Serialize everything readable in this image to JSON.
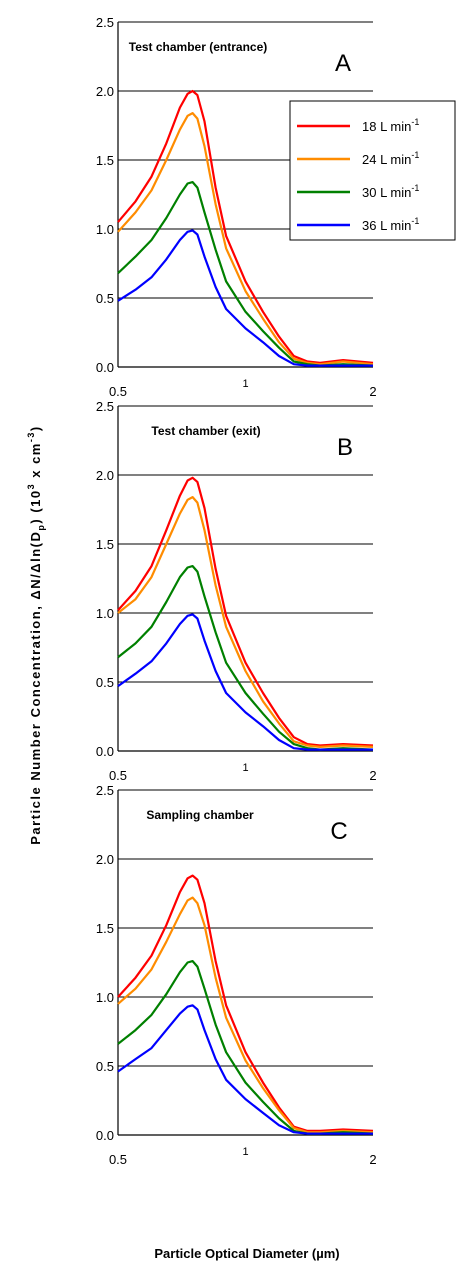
{
  "xlabel": "Particle Optical Diameter (µm)",
  "ylabel": {
    "main": "Particle Number Concentration, ΔN/Δln(D",
    "sub": "p",
    "mid": ")  (10",
    "sup1": "3",
    "mid2": " x cm",
    "sup2": "-3",
    "end": ")"
  },
  "legend": [
    {
      "text": "18 L min",
      "sup": "-1"
    },
    {
      "text": "24 L min",
      "sup": "-1"
    },
    {
      "text": "30 L min",
      "sup": "-1"
    },
    {
      "text": "36 L min",
      "sup": "-1"
    }
  ],
  "x_ticks": [
    {
      "value": 0.5,
      "label": "0.5"
    },
    {
      "value": 1,
      "label": "1"
    },
    {
      "value": 2,
      "label": "2"
    }
  ],
  "y_ticks": [
    {
      "value": 0,
      "label": "0.0"
    },
    {
      "value": 0.5,
      "label": "0.5"
    },
    {
      "value": 1.0,
      "label": "1.0"
    },
    {
      "value": 1.5,
      "label": "1.5"
    },
    {
      "value": 2.0,
      "label": "2.0"
    },
    {
      "value": 2.5,
      "label": "2.5"
    }
  ],
  "chart_data": [
    {
      "type": "line",
      "title": "Test chamber (entrance)",
      "letter": "A",
      "xscale": "log",
      "xlim": [
        0.5,
        2
      ],
      "ylim": [
        0,
        2.5
      ],
      "grid": "horizontal",
      "legend_position": "top-right",
      "x": [
        0.5,
        0.55,
        0.6,
        0.65,
        0.7,
        0.73,
        0.75,
        0.77,
        0.8,
        0.85,
        0.9,
        1.0,
        1.1,
        1.2,
        1.3,
        1.4,
        1.5,
        1.7,
        2.0
      ],
      "series": [
        {
          "name": "18 L min-1",
          "color": "#ff0000",
          "values": [
            1.05,
            1.2,
            1.38,
            1.62,
            1.88,
            1.98,
            2.0,
            1.97,
            1.78,
            1.3,
            0.95,
            0.62,
            0.4,
            0.22,
            0.08,
            0.04,
            0.03,
            0.05,
            0.03
          ]
        },
        {
          "name": "24 L min-1",
          "color": "#ff8c00",
          "values": [
            0.98,
            1.12,
            1.28,
            1.5,
            1.72,
            1.82,
            1.84,
            1.8,
            1.6,
            1.18,
            0.86,
            0.55,
            0.35,
            0.18,
            0.06,
            0.03,
            0.02,
            0.04,
            0.02
          ]
        },
        {
          "name": "30 L min-1",
          "color": "#008000",
          "values": [
            0.68,
            0.8,
            0.92,
            1.08,
            1.25,
            1.33,
            1.34,
            1.3,
            1.12,
            0.85,
            0.62,
            0.4,
            0.26,
            0.14,
            0.04,
            0.02,
            0.01,
            0.02,
            0.01
          ]
        },
        {
          "name": "36 L min-1",
          "color": "#0000ff",
          "values": [
            0.48,
            0.56,
            0.65,
            0.78,
            0.92,
            0.98,
            0.99,
            0.96,
            0.8,
            0.58,
            0.42,
            0.28,
            0.18,
            0.08,
            0.02,
            0.01,
            0.01,
            0.01,
            0.01
          ]
        }
      ]
    },
    {
      "type": "line",
      "title": "Test chamber (exit)",
      "letter": "B",
      "xscale": "log",
      "xlim": [
        0.5,
        2
      ],
      "ylim": [
        0,
        2.5
      ],
      "grid": "horizontal",
      "x": [
        0.5,
        0.55,
        0.6,
        0.65,
        0.7,
        0.73,
        0.75,
        0.77,
        0.8,
        0.85,
        0.9,
        1.0,
        1.1,
        1.2,
        1.3,
        1.4,
        1.5,
        1.7,
        2.0
      ],
      "series": [
        {
          "name": "18 L min-1",
          "color": "#ff0000",
          "values": [
            1.02,
            1.16,
            1.34,
            1.6,
            1.85,
            1.96,
            1.98,
            1.95,
            1.76,
            1.32,
            0.98,
            0.64,
            0.42,
            0.24,
            0.1,
            0.05,
            0.04,
            0.05,
            0.04
          ]
        },
        {
          "name": "24 L min-1",
          "color": "#ff8c00",
          "values": [
            1.0,
            1.1,
            1.26,
            1.5,
            1.72,
            1.82,
            1.84,
            1.8,
            1.6,
            1.2,
            0.9,
            0.58,
            0.36,
            0.2,
            0.07,
            0.04,
            0.03,
            0.04,
            0.03
          ]
        },
        {
          "name": "30 L min-1",
          "color": "#008000",
          "values": [
            0.68,
            0.78,
            0.9,
            1.08,
            1.26,
            1.33,
            1.34,
            1.3,
            1.12,
            0.86,
            0.64,
            0.42,
            0.27,
            0.14,
            0.05,
            0.02,
            0.01,
            0.02,
            0.01
          ]
        },
        {
          "name": "36 L min-1",
          "color": "#0000ff",
          "values": [
            0.47,
            0.56,
            0.65,
            0.78,
            0.92,
            0.98,
            0.99,
            0.96,
            0.8,
            0.58,
            0.42,
            0.28,
            0.18,
            0.08,
            0.02,
            0.01,
            0.01,
            0.01,
            0.01
          ]
        }
      ]
    },
    {
      "type": "line",
      "title": "Sampling chamber",
      "letter": "C",
      "xscale": "log",
      "xlim": [
        0.5,
        2
      ],
      "ylim": [
        0,
        2.5
      ],
      "grid": "horizontal",
      "x": [
        0.5,
        0.55,
        0.6,
        0.65,
        0.7,
        0.73,
        0.75,
        0.77,
        0.8,
        0.85,
        0.9,
        1.0,
        1.1,
        1.2,
        1.3,
        1.4,
        1.5,
        1.7,
        2.0
      ],
      "series": [
        {
          "name": "18 L min-1",
          "color": "#ff0000",
          "values": [
            1.0,
            1.14,
            1.3,
            1.52,
            1.76,
            1.86,
            1.88,
            1.85,
            1.68,
            1.26,
            0.94,
            0.6,
            0.38,
            0.2,
            0.06,
            0.03,
            0.03,
            0.04,
            0.03
          ]
        },
        {
          "name": "24 L min-1",
          "color": "#ff8c00",
          "values": [
            0.95,
            1.06,
            1.2,
            1.4,
            1.6,
            1.7,
            1.72,
            1.68,
            1.52,
            1.14,
            0.85,
            0.54,
            0.34,
            0.18,
            0.05,
            0.02,
            0.02,
            0.03,
            0.02
          ]
        },
        {
          "name": "30 L min-1",
          "color": "#008000",
          "values": [
            0.66,
            0.76,
            0.87,
            1.02,
            1.18,
            1.25,
            1.26,
            1.22,
            1.06,
            0.8,
            0.6,
            0.38,
            0.24,
            0.12,
            0.03,
            0.01,
            0.01,
            0.02,
            0.01
          ]
        },
        {
          "name": "36 L min-1",
          "color": "#0000ff",
          "values": [
            0.46,
            0.55,
            0.63,
            0.76,
            0.88,
            0.93,
            0.94,
            0.91,
            0.76,
            0.55,
            0.4,
            0.26,
            0.16,
            0.07,
            0.02,
            0.01,
            0.01,
            0.01,
            0.01
          ]
        }
      ]
    }
  ]
}
